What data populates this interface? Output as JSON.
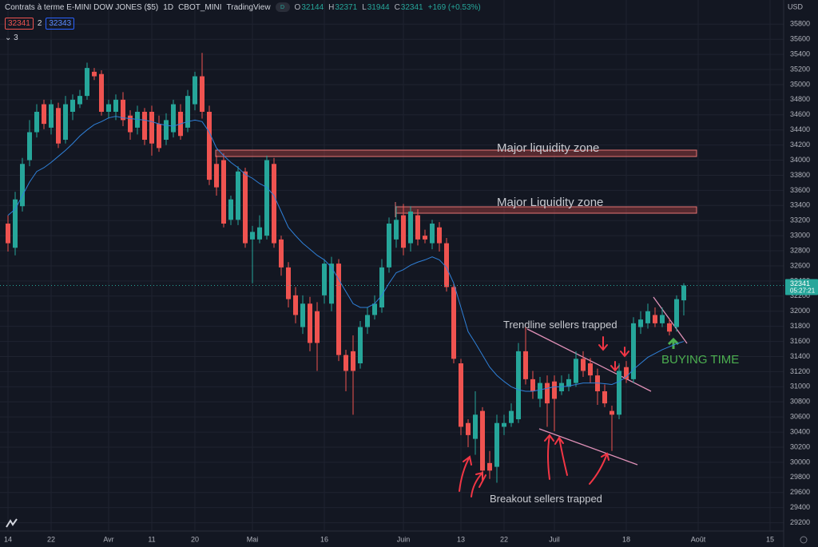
{
  "header": {
    "symbol": "Contrats à terme E-MINI DOW JONES ($5)",
    "interval": "1D",
    "exchange": "CBOT_MINI",
    "source": "TradingView",
    "badge": "D",
    "ohlc_labels": [
      "O",
      "H",
      "L",
      "C"
    ],
    "change": "+169 (+0.53%)",
    "spread": 2,
    "buy": 32343,
    "indicator_count": 3,
    "currency": "USD",
    "countdown": "05:27:21"
  },
  "annotations": [
    "Major liquidity zone",
    "Major Liquidity zone",
    "Trendline sellers trapped",
    "Breakout sellers trapped",
    "BUYING TIME"
  ],
  "chart_data": {
    "type": "candlestick",
    "categories": [
      "14",
      null,
      null,
      null,
      null,
      null,
      "22",
      null,
      null,
      null,
      null,
      null,
      null,
      null,
      "Avr",
      null,
      null,
      null,
      null,
      null,
      "11",
      null,
      null,
      null,
      null,
      null,
      "20",
      null,
      null,
      null,
      null,
      null,
      null,
      null,
      "Mai",
      null,
      null,
      null,
      null,
      null,
      null,
      null,
      null,
      null,
      "16",
      null,
      null,
      null,
      null,
      null,
      null,
      null,
      null,
      null,
      null,
      "Juin",
      null,
      null,
      null,
      null,
      null,
      null,
      null,
      "13",
      null,
      null,
      null,
      null,
      null,
      "22",
      null,
      null,
      null,
      null,
      null,
      null,
      "Juil",
      null,
      null,
      null,
      null,
      null,
      null,
      null,
      null,
      null,
      "18",
      null,
      null,
      null,
      null,
      null,
      null,
      null,
      null,
      null,
      "Août",
      null,
      null,
      null,
      null,
      null,
      null,
      null,
      null,
      null,
      "15"
    ],
    "open": [
      33160,
      32840,
      33390,
      34000,
      34370,
      34740,
      34430,
      34690,
      34270,
      34640,
      34740,
      34850,
      35170,
      35140,
      34640,
      34640,
      34800,
      34590,
      34430,
      34640,
      34640,
      34480,
      34270,
      34370,
      34640,
      34430,
      34740,
      35110,
      34640,
      33950,
      34000,
      33210,
      33210,
      33850,
      32950,
      32950,
      33000,
      33950,
      32950,
      32580,
      32210,
      31790,
      32100,
      32000,
      32210,
      32100,
      32630,
      31420,
      31470,
      31310,
      31790,
      31950,
      32050,
      32580,
      32950,
      33270,
      32900,
      33270,
      33000,
      32900,
      33110,
      32900,
      32320,
      31310,
      30520,
      30310,
      30680,
      29990,
      29940,
      30470,
      30520,
      30570,
      31470,
      31100,
      30840,
      31050,
      31070,
      30940,
      31000,
      31050,
      31370,
      31310,
      31150,
      30940,
      30680,
      30630,
      31260,
      31100,
      31790,
      31840,
      31950,
      31840,
      31840,
      31790,
      32144,
      null,
      null,
      null,
      null,
      null,
      null,
      null,
      null,
      null,
      null,
      null,
      null
    ],
    "high": [
      33270,
      33580,
      34030,
      34530,
      34740,
      34800,
      34800,
      34760,
      34850,
      34870,
      34930,
      35290,
      35220,
      35190,
      34800,
      34870,
      34900,
      34660,
      34720,
      34690,
      34720,
      34590,
      34620,
      34800,
      34740,
      34930,
      35170,
      35420,
      34720,
      34060,
      34090,
      33530,
      33920,
      33900,
      33130,
      33270,
      34060,
      34030,
      33000,
      32650,
      32320,
      32210,
      32190,
      32120,
      32690,
      32720,
      32690,
      31490,
      31680,
      31870,
      32050,
      32210,
      32690,
      33240,
      33390,
      33420,
      33390,
      33350,
      33080,
      33210,
      33180,
      32970,
      32370,
      31370,
      30570,
      30940,
      30730,
      30150,
      30630,
      30630,
      30780,
      31580,
      31790,
      31210,
      31130,
      31150,
      31150,
      31150,
      31170,
      31470,
      31470,
      31380,
      31240,
      31030,
      30750,
      31310,
      31340,
      31920,
      32000,
      32100,
      32050,
      32050,
      31910,
      32210,
      32371,
      null,
      null,
      null,
      null,
      null,
      null,
      null,
      null,
      null,
      null,
      null,
      null
    ],
    "low": [
      32790,
      32740,
      33320,
      33920,
      34300,
      34410,
      34340,
      34160,
      34220,
      34530,
      34690,
      34800,
      35060,
      34590,
      34550,
      34530,
      34450,
      34270,
      34340,
      34200,
      34060,
      34110,
      34200,
      34300,
      34270,
      34370,
      34660,
      34550,
      33670,
      33530,
      33110,
      33140,
      33140,
      32840,
      32370,
      32900,
      32950,
      32840,
      32470,
      32050,
      31840,
      31700,
      31470,
      31210,
      32100,
      32000,
      31340,
      30940,
      30630,
      31240,
      31700,
      31890,
      31980,
      32510,
      32840,
      32740,
      32790,
      32870,
      32900,
      32820,
      32790,
      32260,
      31310,
      30360,
      30200,
      30100,
      29780,
      29780,
      29730,
      30360,
      30470,
      30520,
      31030,
      30840,
      30730,
      30470,
      30410,
      30890,
      30940,
      31000,
      31130,
      31050,
      30760,
      30730,
      30150,
      30570,
      31050,
      31050,
      31700,
      31770,
      31790,
      31790,
      31680,
      31730,
      31944,
      null,
      null,
      null,
      null,
      null,
      null,
      null,
      null,
      null,
      null,
      null,
      null
    ],
    "close": [
      32900,
      33480,
      33950,
      34370,
      34640,
      34480,
      34740,
      34220,
      34740,
      34800,
      34850,
      35220,
      35110,
      34640,
      34740,
      34800,
      34530,
      34370,
      34640,
      34270,
      34220,
      34160,
      34530,
      34740,
      34320,
      34850,
      35110,
      34640,
      33740,
      33640,
      33160,
      33480,
      33850,
      32900,
      33050,
      33110,
      34000,
      32900,
      32580,
      32160,
      31950,
      32100,
      31580,
      31580,
      32630,
      32630,
      31420,
      31210,
      31210,
      31790,
      31950,
      32100,
      32580,
      33160,
      33210,
      32840,
      33320,
      32950,
      32950,
      33160,
      32900,
      32320,
      31370,
      30470,
      30360,
      30630,
      29890,
      29890,
      30520,
      30520,
      30680,
      31470,
      31100,
      30940,
      31050,
      30780,
      30840,
      31050,
      31100,
      31370,
      31210,
      31150,
      30940,
      30780,
      30630,
      31210,
      31100,
      31840,
      31890,
      32000,
      31840,
      31950,
      31730,
      32160,
      32341,
      null,
      null,
      null,
      null,
      null,
      null,
      null,
      null,
      null,
      null,
      null,
      null
    ],
    "ma_values": [
      33270,
      33350,
      33530,
      33710,
      33850,
      33900,
      33970,
      34050,
      34130,
      34220,
      34320,
      34400,
      34470,
      34510,
      34560,
      34580,
      34560,
      34550,
      34540,
      34530,
      34510,
      34480,
      34460,
      34450,
      34480,
      34510,
      34530,
      34510,
      34370,
      34160,
      34060,
      33970,
      33900,
      33810,
      33760,
      33690,
      33640,
      33530,
      33320,
      33110,
      33000,
      32900,
      32820,
      32740,
      32680,
      32580,
      32420,
      32260,
      32100,
      32050,
      32050,
      32100,
      32210,
      32370,
      32510,
      32550,
      32610,
      32650,
      32680,
      32720,
      32680,
      32580,
      32370,
      32050,
      31730,
      31580,
      31420,
      31260,
      31150,
      31070,
      31000,
      30960,
      30940,
      30940,
      30960,
      30980,
      31000,
      31000,
      31010,
      31030,
      31050,
      31050,
      31050,
      31040,
      31030,
      31070,
      31130,
      31230,
      31310,
      31390,
      31440,
      31490,
      31530,
      31570,
      31600,
      null,
      null,
      null,
      null,
      null,
      null,
      null,
      null,
      null,
      null,
      null,
      null
    ],
    "up_color": "#26a69a",
    "down_color": "#ef5350",
    "ma_color": "#2f80d8",
    "ylim": [
      29090,
      36120
    ],
    "yticks": [
      29200,
      29400,
      29600,
      29800,
      30000,
      30200,
      30400,
      30600,
      30800,
      31000,
      31200,
      31400,
      31600,
      31800,
      32000,
      32200,
      32400,
      32600,
      32800,
      33000,
      33200,
      33400,
      33600,
      33800,
      34000,
      34200,
      34400,
      34600,
      34800,
      35000,
      35200,
      35400,
      35600,
      35800
    ],
    "grid": true
  }
}
